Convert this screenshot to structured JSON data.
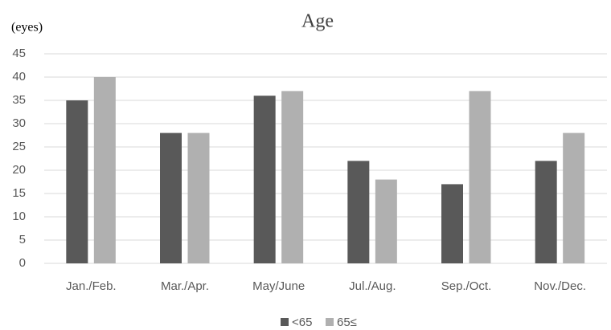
{
  "chart_data": {
    "type": "bar",
    "title": "Age",
    "y_label": "(eyes)",
    "categories": [
      "Jan./Feb.",
      "Mar./Apr.",
      "May/June",
      "Jul./Aug.",
      "Sep./Oct.",
      "Nov./Dec."
    ],
    "series": [
      {
        "name": "<65",
        "color": "#595959",
        "values": [
          35,
          28,
          36,
          22,
          17,
          22
        ]
      },
      {
        "name": "65≤",
        "color": "#b0b0b0",
        "values": [
          40,
          28,
          37,
          18,
          37,
          28
        ]
      }
    ],
    "ylim": [
      0,
      45
    ],
    "yticks": [
      0,
      5,
      10,
      15,
      20,
      25,
      30,
      35,
      40,
      45
    ],
    "grid": true,
    "legend": "bottom"
  }
}
